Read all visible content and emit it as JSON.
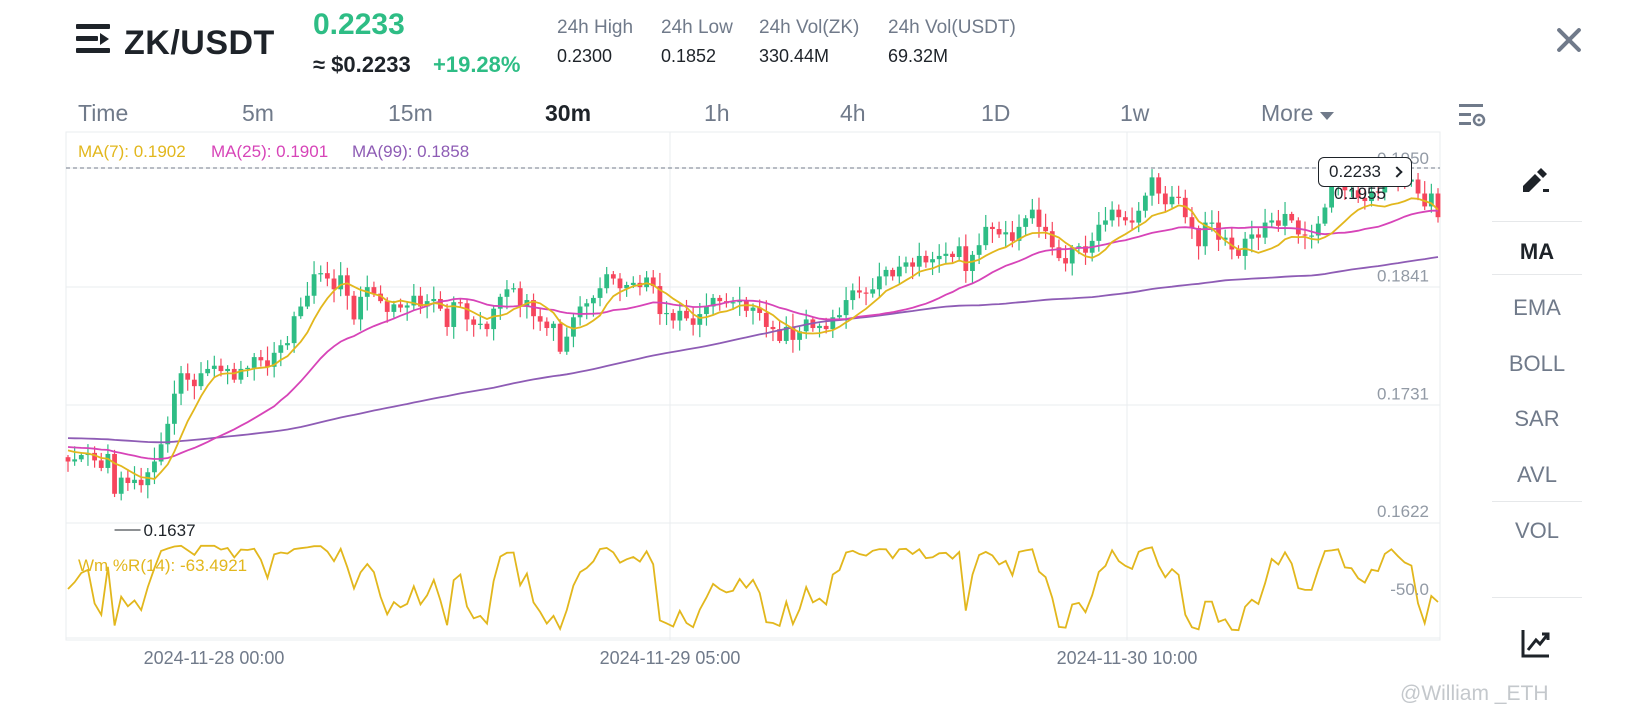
{
  "header": {
    "pair": "ZK/USDT",
    "last_price": "0.2233",
    "approx_price": "≈ $0.2233",
    "change_pct": "+19.28%",
    "stats": [
      {
        "label": "24h High",
        "value": "0.2300"
      },
      {
        "label": "24h Low",
        "value": "0.1852"
      },
      {
        "label": "24h Vol(ZK)",
        "value": "330.44M"
      },
      {
        "label": "24h Vol(USDT)",
        "value": "69.32M"
      }
    ]
  },
  "tabs": [
    "Time",
    "5m",
    "15m",
    "30m",
    "1h",
    "4h",
    "1D",
    "1w"
  ],
  "active_tab": "30m",
  "more_label": "More",
  "legend": {
    "ma7": "MA(7): 0.1902",
    "ma25": "MA(25): 0.1901",
    "ma99": "MA(99): 0.1858",
    "wr": "Wm %R(14): -63.4921"
  },
  "price_tag": "0.2233",
  "toolbar": [
    "MA",
    "EMA",
    "BOLL",
    "SAR",
    "AVL",
    "VOL"
  ],
  "active_indicator": "MA",
  "watermark": "@William _ETH",
  "colors": {
    "up": "#2ebd85",
    "down": "#f6465d",
    "ma7": "#e2b71d",
    "ma25": "#d744b8",
    "ma99": "#8e5cb5",
    "wr": "#e2b71d"
  },
  "chart_data": {
    "type": "candlestick",
    "interval": "30m",
    "y_ticks": [
      0.195,
      0.1841,
      0.1731,
      0.1622
    ],
    "x_labels": [
      "2024-11-28 00:00",
      "2024-11-29 05:00",
      "2024-11-30 10:00"
    ],
    "ylim": [
      0.1622,
      0.195
    ],
    "annotations": {
      "low": 0.1637,
      "high": 0.1955,
      "last": 0.2233
    },
    "ma_latest": {
      "MA7": 0.1902,
      "MA25": 0.1901,
      "MA99": 0.1858
    },
    "wr_latest": -63.4921,
    "wr_level": -50.0,
    "close": [
      0.1668,
      0.167,
      0.1674,
      0.1676,
      0.1669,
      0.1662,
      0.1675,
      0.1638,
      0.1653,
      0.1648,
      0.1651,
      0.1646,
      0.1658,
      0.1668,
      0.1684,
      0.1703,
      0.1731,
      0.175,
      0.1744,
      0.1738,
      0.175,
      0.1754,
      0.1757,
      0.1752,
      0.1754,
      0.1744,
      0.1754,
      0.1755,
      0.1765,
      0.1762,
      0.1756,
      0.1769,
      0.1776,
      0.1778,
      0.1803,
      0.1812,
      0.1822,
      0.1842,
      0.1843,
      0.1838,
      0.1828,
      0.1841,
      0.1822,
      0.18,
      0.1821,
      0.183,
      0.1824,
      0.1817,
      0.1807,
      0.1814,
      0.1811,
      0.1813,
      0.1822,
      0.1812,
      0.1817,
      0.1819,
      0.181,
      0.1793,
      0.1816,
      0.1815,
      0.18,
      0.1795,
      0.1796,
      0.1791,
      0.181,
      0.1821,
      0.1828,
      0.1829,
      0.1812,
      0.1818,
      0.1803,
      0.1798,
      0.1792,
      0.1796,
      0.177,
      0.1784,
      0.1802,
      0.1812,
      0.1815,
      0.182,
      0.1829,
      0.1842,
      0.1838,
      0.1829,
      0.1832,
      0.1834,
      0.183,
      0.1839,
      0.1831,
      0.1805,
      0.1806,
      0.1799,
      0.1808,
      0.1801,
      0.1795,
      0.1805,
      0.1812,
      0.182,
      0.1817,
      0.1815,
      0.1816,
      0.1818,
      0.1808,
      0.1811,
      0.1806,
      0.1793,
      0.1791,
      0.178,
      0.1793,
      0.1781,
      0.1789,
      0.18,
      0.1792,
      0.1794,
      0.1791,
      0.1802,
      0.1804,
      0.1818,
      0.1827,
      0.1825,
      0.1824,
      0.1828,
      0.184,
      0.1846,
      0.184,
      0.1849,
      0.1853,
      0.1849,
      0.1859,
      0.1853,
      0.1856,
      0.1859,
      0.1861,
      0.1858,
      0.1868,
      0.1845,
      0.186,
      0.1869,
      0.1886,
      0.1884,
      0.1879,
      0.1881,
      0.1873,
      0.1886,
      0.1894,
      0.1902,
      0.1886,
      0.1882,
      0.1867,
      0.1857,
      0.1852,
      0.1867,
      0.1868,
      0.1862,
      0.1873,
      0.1888,
      0.1892,
      0.1902,
      0.1895,
      0.1892,
      0.189,
      0.1901,
      0.1915,
      0.1932,
      0.1917,
      0.1907,
      0.1914,
      0.1913,
      0.1895,
      0.1885,
      0.1868,
      0.189,
      0.189,
      0.1874,
      0.1876,
      0.1865,
      0.1859,
      0.1875,
      0.1879,
      0.1876,
      0.189,
      0.1892,
      0.1887,
      0.1898,
      0.1892,
      0.1879,
      0.1878,
      0.1878,
      0.1889,
      0.1904,
      0.1924,
      0.1933,
      0.192,
      0.192,
      0.1913,
      0.191,
      0.1919,
      0.1918,
      0.193,
      0.1935,
      0.193,
      0.1928,
      0.193,
      0.1917,
      0.1905,
      0.1917,
      0.1895
    ]
  }
}
